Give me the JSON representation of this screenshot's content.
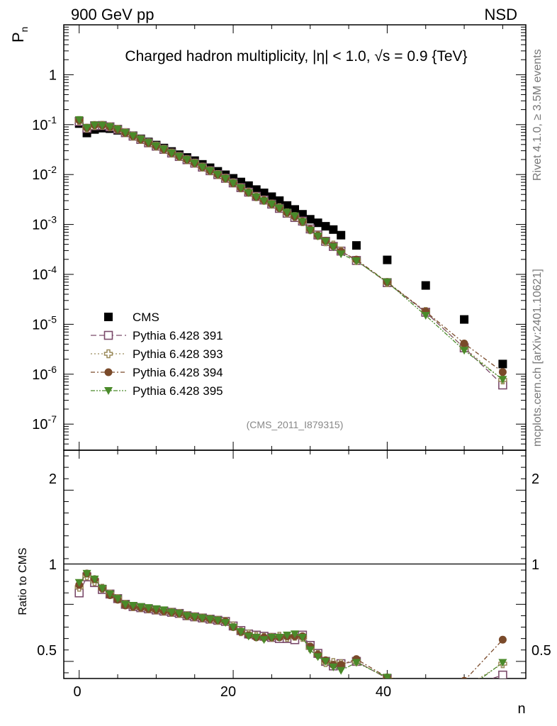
{
  "header": {
    "left": "900 GeV pp",
    "right": "NSD"
  },
  "side": {
    "rivet": "Rivet 4.1.0, ≥ 3.5M events",
    "mcplots": "mcplots.cern.ch [arXiv:2401.10621]"
  },
  "chart_data": {
    "type": "scatter",
    "title": "Charged hadron multiplicity, |η| < 1.0, √s = 0.9 {TeV}",
    "analysis_tag": "(CMS_2011_I879315)",
    "ylabel_main": "P_n",
    "ylabel_ratio": "Ratio to CMS",
    "xlabel": "n",
    "xlim": [
      -2,
      58
    ],
    "ylim_log": [
      3e-08,
      10
    ],
    "ylim_ratio": [
      0.35,
      2.35
    ],
    "x_ticks": [
      "0",
      "20",
      "40"
    ],
    "y_ticks_main": [
      "10^-7",
      "10^-6",
      "10^-5",
      "10^-4",
      "10^-3",
      "10^-2",
      "10^-1",
      "1"
    ],
    "y_ticks_ratio": [
      "0.5",
      "1",
      "2"
    ],
    "x": [
      0,
      1,
      2,
      3,
      4,
      5,
      6,
      7,
      8,
      9,
      10,
      11,
      12,
      13,
      14,
      15,
      16,
      17,
      18,
      19,
      20,
      21,
      22,
      23,
      24,
      25,
      26,
      27,
      28,
      29,
      30,
      31,
      32,
      33,
      34,
      36,
      40,
      45,
      50,
      55
    ],
    "cms_values": [
      0.105,
      0.068,
      0.08,
      0.085,
      0.083,
      0.077,
      0.069,
      0.06,
      0.052,
      0.045,
      0.039,
      0.034,
      0.029,
      0.025,
      0.022,
      0.019,
      0.016,
      0.0137,
      0.0116,
      0.0099,
      0.0084,
      0.0071,
      0.006,
      0.005,
      0.0043,
      0.0036,
      0.003,
      0.0024,
      0.002,
      0.0016,
      0.00127,
      0.00108,
      0.00092,
      0.00079,
      0.00061,
      0.00038,
      0.000195,
      6e-05,
      1.25e-05,
      1.6e-06
    ],
    "series": [
      {
        "name": "Pythia 6.428 391",
        "marker": "open-square",
        "line": "dashed",
        "color": "#7a4a6a",
        "ratio": [
          1.1,
          1.24,
          1.19,
          1.13,
          1.09,
          1.05,
          1.0,
          0.98,
          0.97,
          0.96,
          0.95,
          0.94,
          0.93,
          0.92,
          0.9,
          0.89,
          0.88,
          0.87,
          0.86,
          0.85,
          0.81,
          0.77,
          0.74,
          0.73,
          0.72,
          0.71,
          0.7,
          0.7,
          0.69,
          0.73,
          0.64,
          0.57,
          0.5,
          0.46,
          0.48,
          0.5,
          0.35,
          0.29,
          0.27,
          0.38
        ]
      },
      {
        "name": "Pythia 6.428 393",
        "marker": "open-cross",
        "line": "dotted",
        "color": "#9a8a5a",
        "ratio": [
          1.15,
          1.25,
          1.2,
          1.14,
          1.09,
          1.05,
          1.0,
          0.98,
          0.97,
          0.96,
          0.95,
          0.94,
          0.93,
          0.92,
          0.9,
          0.89,
          0.88,
          0.87,
          0.86,
          0.85,
          0.81,
          0.76,
          0.74,
          0.72,
          0.71,
          0.71,
          0.72,
          0.71,
          0.72,
          0.71,
          0.62,
          0.56,
          0.49,
          0.49,
          0.48,
          0.5,
          0.35,
          0.3,
          0.27,
          0.48
        ]
      },
      {
        "name": "Pythia 6.428 394",
        "marker": "filled-circle",
        "line": "dashdot",
        "color": "#7a4a2a",
        "ratio": [
          1.17,
          1.27,
          1.22,
          1.14,
          1.08,
          1.04,
          0.99,
          0.98,
          0.97,
          0.96,
          0.95,
          0.94,
          0.93,
          0.92,
          0.9,
          0.89,
          0.88,
          0.87,
          0.86,
          0.85,
          0.8,
          0.76,
          0.73,
          0.71,
          0.71,
          0.71,
          0.71,
          0.72,
          0.72,
          0.72,
          0.63,
          0.56,
          0.51,
          0.47,
          0.47,
          0.52,
          0.36,
          0.3,
          0.33,
          0.69
        ]
      },
      {
        "name": "Pythia 6.428 395",
        "marker": "filled-triangle-down",
        "line": "dashdotdot",
        "color": "#4a8a2a",
        "ratio": [
          1.19,
          1.27,
          1.22,
          1.14,
          1.09,
          1.05,
          1.0,
          0.99,
          0.98,
          0.97,
          0.96,
          0.95,
          0.93,
          0.92,
          0.9,
          0.89,
          0.88,
          0.87,
          0.86,
          0.84,
          0.8,
          0.76,
          0.72,
          0.71,
          0.69,
          0.71,
          0.71,
          0.73,
          0.74,
          0.71,
          0.6,
          0.54,
          0.5,
          0.45,
          0.42,
          0.49,
          0.36,
          0.25,
          0.24,
          0.49
        ]
      }
    ],
    "legend_entries": [
      "CMS",
      "Pythia 6.428 391",
      "Pythia 6.428 393",
      "Pythia 6.428 394",
      "Pythia 6.428 395"
    ],
    "legend_position": "lower-left"
  }
}
